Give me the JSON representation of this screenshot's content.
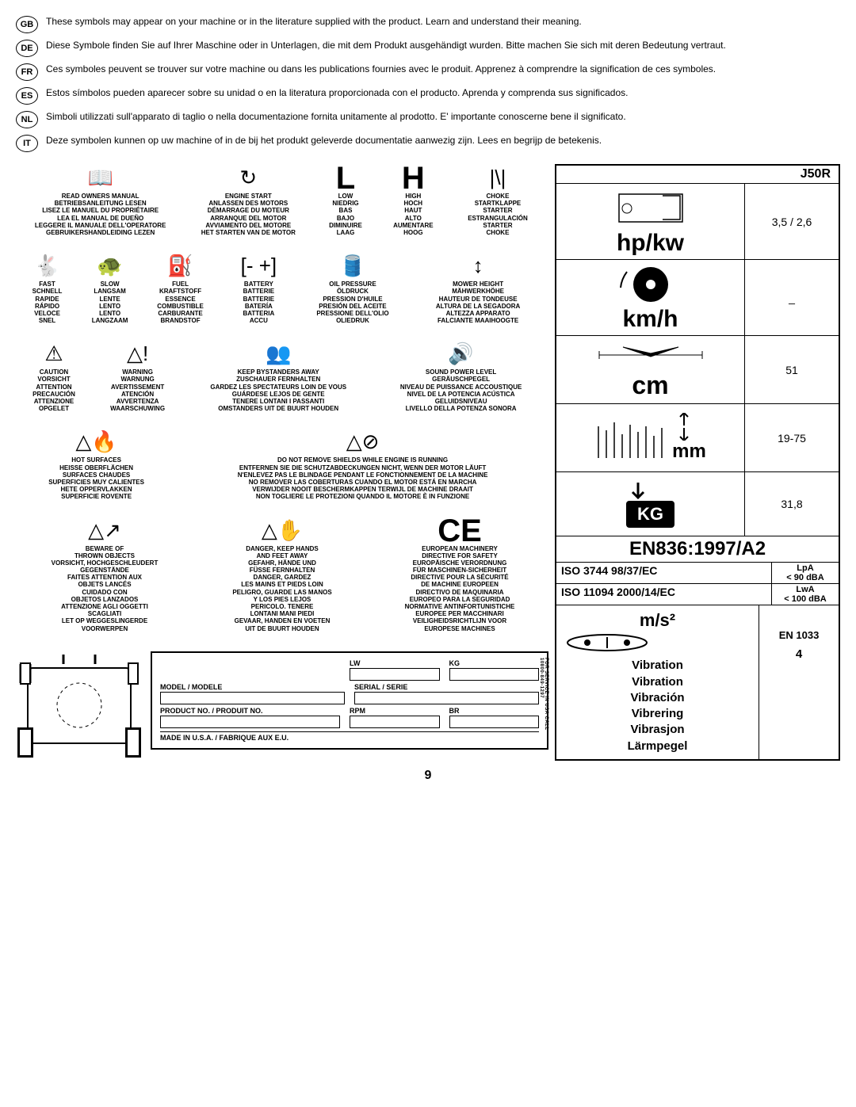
{
  "langs": [
    {
      "code": "GB",
      "text": "These symbols may appear on your machine or in the literature supplied with the product.  Learn and understand their meaning."
    },
    {
      "code": "DE",
      "text": "Diese Symbole finden Sie auf Ihrer Maschine oder in Unterlagen, die mit dem Produkt ausgehändigt wurden.  Bitte machen Sie sich mit deren Bedeutung vertraut."
    },
    {
      "code": "FR",
      "text": "Ces symboles peuvent se trouver sur votre machine ou dans les publications fournies avec le produit. Apprenez à comprendre la signification de ces symboles."
    },
    {
      "code": "ES",
      "text": "Estos símbolos pueden aparecer sobre su unidad o en la literatura proporcionada con el producto.  Aprenda y comprenda sus significados."
    },
    {
      "code": "NL",
      "text": "Simboli utilizzati sull'apparato di taglio o nella documentazione fornita unitamente al prodotto. E' importante conoscerne bene il significato."
    },
    {
      "code": "IT",
      "text": "Deze symbolen kunnen op uw machine of in de bij het produkt geleverde documentatie aanwezig zijn.  Lees en begrijp de betekenis."
    }
  ],
  "row1": [
    {
      "icon": "📖",
      "lines": [
        "READ OWNERS MANUAL",
        "BETRIEBSANLEITUNG LESEN",
        "LISEZ LE MANUEL DU PROPRIÉTAIRE",
        "LEA EL MANUAL DE DUEÑO",
        "LEGGERE IL MANUALE DELL'OPERATORE",
        "GEBRUIKERSHANDLEIDING LEZEN"
      ]
    },
    {
      "icon": "↻",
      "lines": [
        "ENGINE START",
        "ANLASSEN DES MOTORS",
        "DÉMARRAGE DU MOTEUR",
        "ARRANQUE DEL MOTOR",
        "AVVIAMENTO DEL MOTORE",
        "HET STARTEN VAN DE MOTOR"
      ]
    },
    {
      "icon": "L",
      "big": true,
      "lines": [
        "LOW",
        "NIEDRIG",
        "BAS",
        "BAJO",
        "DIMINUIRE",
        "LAAG"
      ]
    },
    {
      "icon": "H",
      "big": true,
      "lines": [
        "HIGH",
        "HOCH",
        "HAUT",
        "ALTO",
        "AUMENTARE",
        "HOOG"
      ]
    },
    {
      "icon": "|\\|",
      "lines": [
        "CHOKE",
        "STARTKLAPPE",
        "STARTER",
        "ESTRANGULACIÓN",
        "STARTER",
        "CHOKE"
      ]
    }
  ],
  "row2": [
    {
      "icon": "🐇",
      "lines": [
        "FAST",
        "SCHNELL",
        "RAPIDE",
        "RÁPIDO",
        "VELOCE",
        "SNEL"
      ]
    },
    {
      "icon": "🐢",
      "lines": [
        "SLOW",
        "LANGSAM",
        "LENTE",
        "LENTO",
        "LENTO",
        "LANGZAAM"
      ]
    },
    {
      "icon": "⛽",
      "lines": [
        "FUEL",
        "KRAFTSTOFF",
        "ESSENCE",
        "COMBUSTIBLE",
        "CARBURANTE",
        "BRANDSTOF"
      ]
    },
    {
      "icon": "[- +]",
      "lines": [
        "BATTERY",
        "BATTERIE",
        "BATTERIE",
        "BATERÍA",
        "BATTERIA",
        "ACCU"
      ]
    },
    {
      "icon": "🛢️",
      "lines": [
        "OIL PRESSURE",
        "ÖLDRUCK",
        "PRESSION D'HUILE",
        "PRESIÓN DEL ACEITE",
        "PRESSIONE DELL'OLIO",
        "OLIEDRUK"
      ]
    },
    {
      "icon": "↕",
      "lines": [
        "MOWER HEIGHT",
        "MÄHWERKHÖHE",
        "HAUTEUR DE TONDEUSE",
        "ALTURA DE LA SEGADORA",
        "ALTEZZA APPARATO",
        "FALCIANTE  MAAIHOOGTE"
      ]
    }
  ],
  "row3": [
    {
      "icon": "⚠",
      "lines": [
        "CAUTION",
        "VORSICHT",
        "ATTENTION",
        "PRECAUCIÓN",
        "ATTENZIONE",
        "OPGELET"
      ]
    },
    {
      "icon": "△!",
      "lines": [
        "WARNING",
        "WARNUNG",
        "AVERTISSEMENT",
        "ATENCIÓN",
        "AVVERTENZA",
        "WAARSCHUWING"
      ]
    },
    {
      "icon": "👥",
      "lines": [
        "KEEP BYSTANDERS AWAY",
        "ZUSCHAUER FERNHALTEN",
        "GARDEZ LES SPECTATEURS LOIN DE VOUS",
        "GUÁRDESE LEJOS DE GENTE",
        "TENERE LONTANI I PASSANTI",
        "OMSTANDERS UIT DE BUURT HOUDEN"
      ]
    },
    {
      "icon": "🔊",
      "lines": [
        "SOUND POWER LEVEL",
        "GERÄUSCHPEGEL",
        "NIVEAU DE PUISSANCE ACCOUSTIQUE",
        "NIVEL DE LA POTENCIA ACÚSTICA",
        "GELUIDSNIVEAU",
        "LIVELLO DELLA POTENZA SONORA"
      ]
    }
  ],
  "row4": [
    {
      "icon": "△🔥",
      "lines": [
        "HOT SURFACES",
        "HEISSE OBERFLÄCHEN",
        "SURFACES CHAUDES",
        "SUPERFICIES MUY CALIENTES",
        "HETE OPPERVLAKKEN",
        "SUPERFICIE ROVENTE"
      ]
    },
    {
      "icon": "△⊘",
      "lines": [
        "DO NOT REMOVE SHIELDS WHILE ENGINE IS RUNNING",
        "ENTFERNEN SIE DIE SCHUTZABDECKUNGEN NICHT, WENN DER MOTOR LÄUFT",
        "N'ENLEVEZ PAS LE BLINDAGE PENDANT LE FONCTIONNEMENT DE LA MACHINE",
        "NO REMOVER LAS COBERTURAS CUANDO EL MOTOR ESTÁ EN MARCHA",
        "VERWIJDER NOOIT BESCHERMKAPPEN TERWIJL DE MACHINE DRAAIT",
        "NON TOGLIERE LE PROTEZIONI QUANDO IL MOTORE È IN FUNZIONE"
      ]
    }
  ],
  "row5": [
    {
      "icon": "△↗",
      "lines": [
        "BEWARE OF",
        "THROWN OBJECTS",
        "VORSICHT, HOCHGESCHLEUDERT",
        "GEGENSTÄNDE",
        "FAITES ATTENTION AUX",
        "OBJETS LANCÉS",
        "CUIDADO CON",
        "OBJETOS LANZADOS",
        "ATTENZIONE AGLI OGGETTI",
        "SCAGLIATI",
        "LET OP WEGGESLINGERDE",
        "VOORWERPEN"
      ]
    },
    {
      "icon": "△✋",
      "lines": [
        "DANGER, KEEP HANDS",
        "AND FEET AWAY",
        "GEFAHR, HÄNDE UND",
        "FÜSSE FERNHALTEN",
        "DANGER, GARDEZ",
        "LES MAINS ET PIEDS LOIN",
        "PELIGRO, GUARDE LAS MANOS",
        "Y LOS PIES LEJOS",
        "PERICOLO. TENERE",
        "LONTANI MANI PIEDI",
        "GEVAAR, HANDEN EN VOETEN",
        "UIT DE BUURT HOUDEN"
      ]
    },
    {
      "icon": "CE",
      "big": true,
      "lines": [
        "EUROPEAN MACHINERY",
        "DIRECTIVE FOR SAFETY",
        "EUROPÄISCHE VERORDNUNG",
        "FÜR MASCHINEN-SICHERHEIT",
        "DIRECTIVE POUR LA SÉCURITÉ",
        "DE MACHINE EUROPEEN",
        "DIRECTIVO DE MAQUINARIA",
        "EUROPEO PARA LA SEGURIDAD",
        "NORMATIVE ANTINFORTUNISTICHE",
        "EUROPEE PER MACCHINARI",
        "VEILIGHEIDSRICHTLIJN VOOR",
        "EUROPESE MACHINES"
      ]
    }
  ],
  "specs": {
    "model": "J50R",
    "hp": "hp/kw",
    "hp_val": "3,5 / 2,6",
    "kmh": "km/h",
    "kmh_val": "_",
    "cm": "cm",
    "cm_val": "51",
    "mm": "mm",
    "mm_val": "19-75",
    "kg": "KG",
    "kg_val": "31,8",
    "en": "EN836:1997/A2",
    "iso1_l": "ISO 3744    98/37/EC",
    "iso1_r_top": "LpA",
    "iso1_r_bot": "< 90 dBA",
    "iso2_l": "ISO 11094 2000/14/EC",
    "iso2_r_top": "LwA",
    "iso2_r_bot": "< 100 dBA",
    "ms2": "m/s²",
    "vib": [
      "Vibration",
      "Vibration",
      "Vibración",
      "Vibrering",
      "Vibrasjon",
      "Lärmpegel"
    ],
    "vib_std": "EN 1033",
    "vib_val": "4"
  },
  "plate": {
    "lw": "LW",
    "kg": "KG",
    "model": "MODEL / MODELE",
    "serial": "SERIAL / SERIE",
    "product": "PRODUCT NO. / PRODUIT NO.",
    "rpm": "RPM",
    "br": "BR",
    "made": "MADE IN U.S.A. / FABRIQUE AUX E.U.",
    "side": "FOR SERVICE IN USA CALL 10800-849-1297"
  },
  "page": "9"
}
